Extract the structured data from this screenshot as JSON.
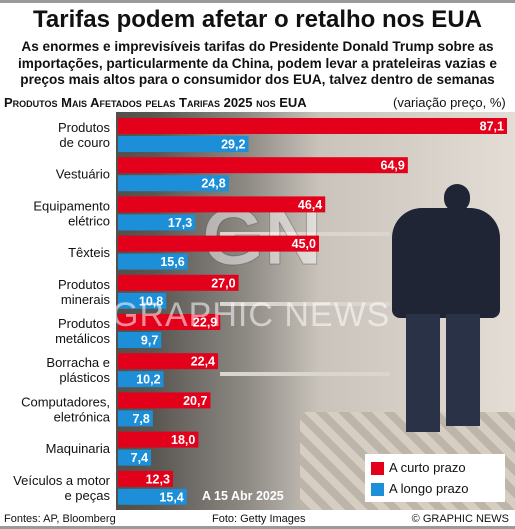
{
  "header": {
    "title": "Tarifas podem afetar o retalho nos EUA",
    "subtitle": "As enormes e imprevisíveis tarifas do Presidente Donald Trump sobre as importações, particularmente da China, podem levar a prateleiras vazias e preços mais altos para o consumidor dos EUA, talvez dentro de semanas"
  },
  "chart_data": {
    "type": "bar",
    "title": "Produtos Mais Afetados pelas Tarifas 2025 nos EUA",
    "unit_note": "(variação preço, %)",
    "categories": [
      [
        "Produtos",
        "de couro"
      ],
      [
        "Vestuário"
      ],
      [
        "Equipamento",
        "elétrico"
      ],
      [
        "Têxteis"
      ],
      [
        "Produtos",
        "minerais"
      ],
      [
        "Produtos",
        "metálicos"
      ],
      [
        "Borracha e",
        "plásticos"
      ],
      [
        "Computadores,",
        "eletrónica"
      ],
      [
        "Maquinaria"
      ],
      [
        "Veículos a motor",
        "e peças"
      ]
    ],
    "series": [
      {
        "name": "A curto prazo",
        "color": "#e3001b",
        "values": [
          87.1,
          64.9,
          46.4,
          45.0,
          27.0,
          22.9,
          22.4,
          20.7,
          18.0,
          12.3
        ],
        "labels": [
          "87,1",
          "64,9",
          "46,4",
          "45,0",
          "27,0",
          "22,9",
          "22,4",
          "20,7",
          "18,0",
          "12,3"
        ]
      },
      {
        "name": "A longo prazo",
        "color": "#1d8fd9",
        "values": [
          29.2,
          24.8,
          17.3,
          15.6,
          10.8,
          9.7,
          10.2,
          7.8,
          7.4,
          15.4
        ],
        "labels": [
          "29,2",
          "24,8",
          "17,3",
          "15,6",
          "10,8",
          "9,7",
          "10,2",
          "7,8",
          "7,4",
          "15,4"
        ]
      }
    ],
    "xlim": [
      0,
      87.1
    ],
    "grid": false,
    "legend_position": "bottom-right",
    "date_note": "A 15 Abr 2025"
  },
  "footer": {
    "sources": "Fontes: AP, Bloomberg",
    "photo": "Foto: Getty Images",
    "copyright": "© GRAPHIC NEWS"
  },
  "watermark": {
    "logo_text": "GN",
    "text": "GRAPHIC NEWS"
  }
}
